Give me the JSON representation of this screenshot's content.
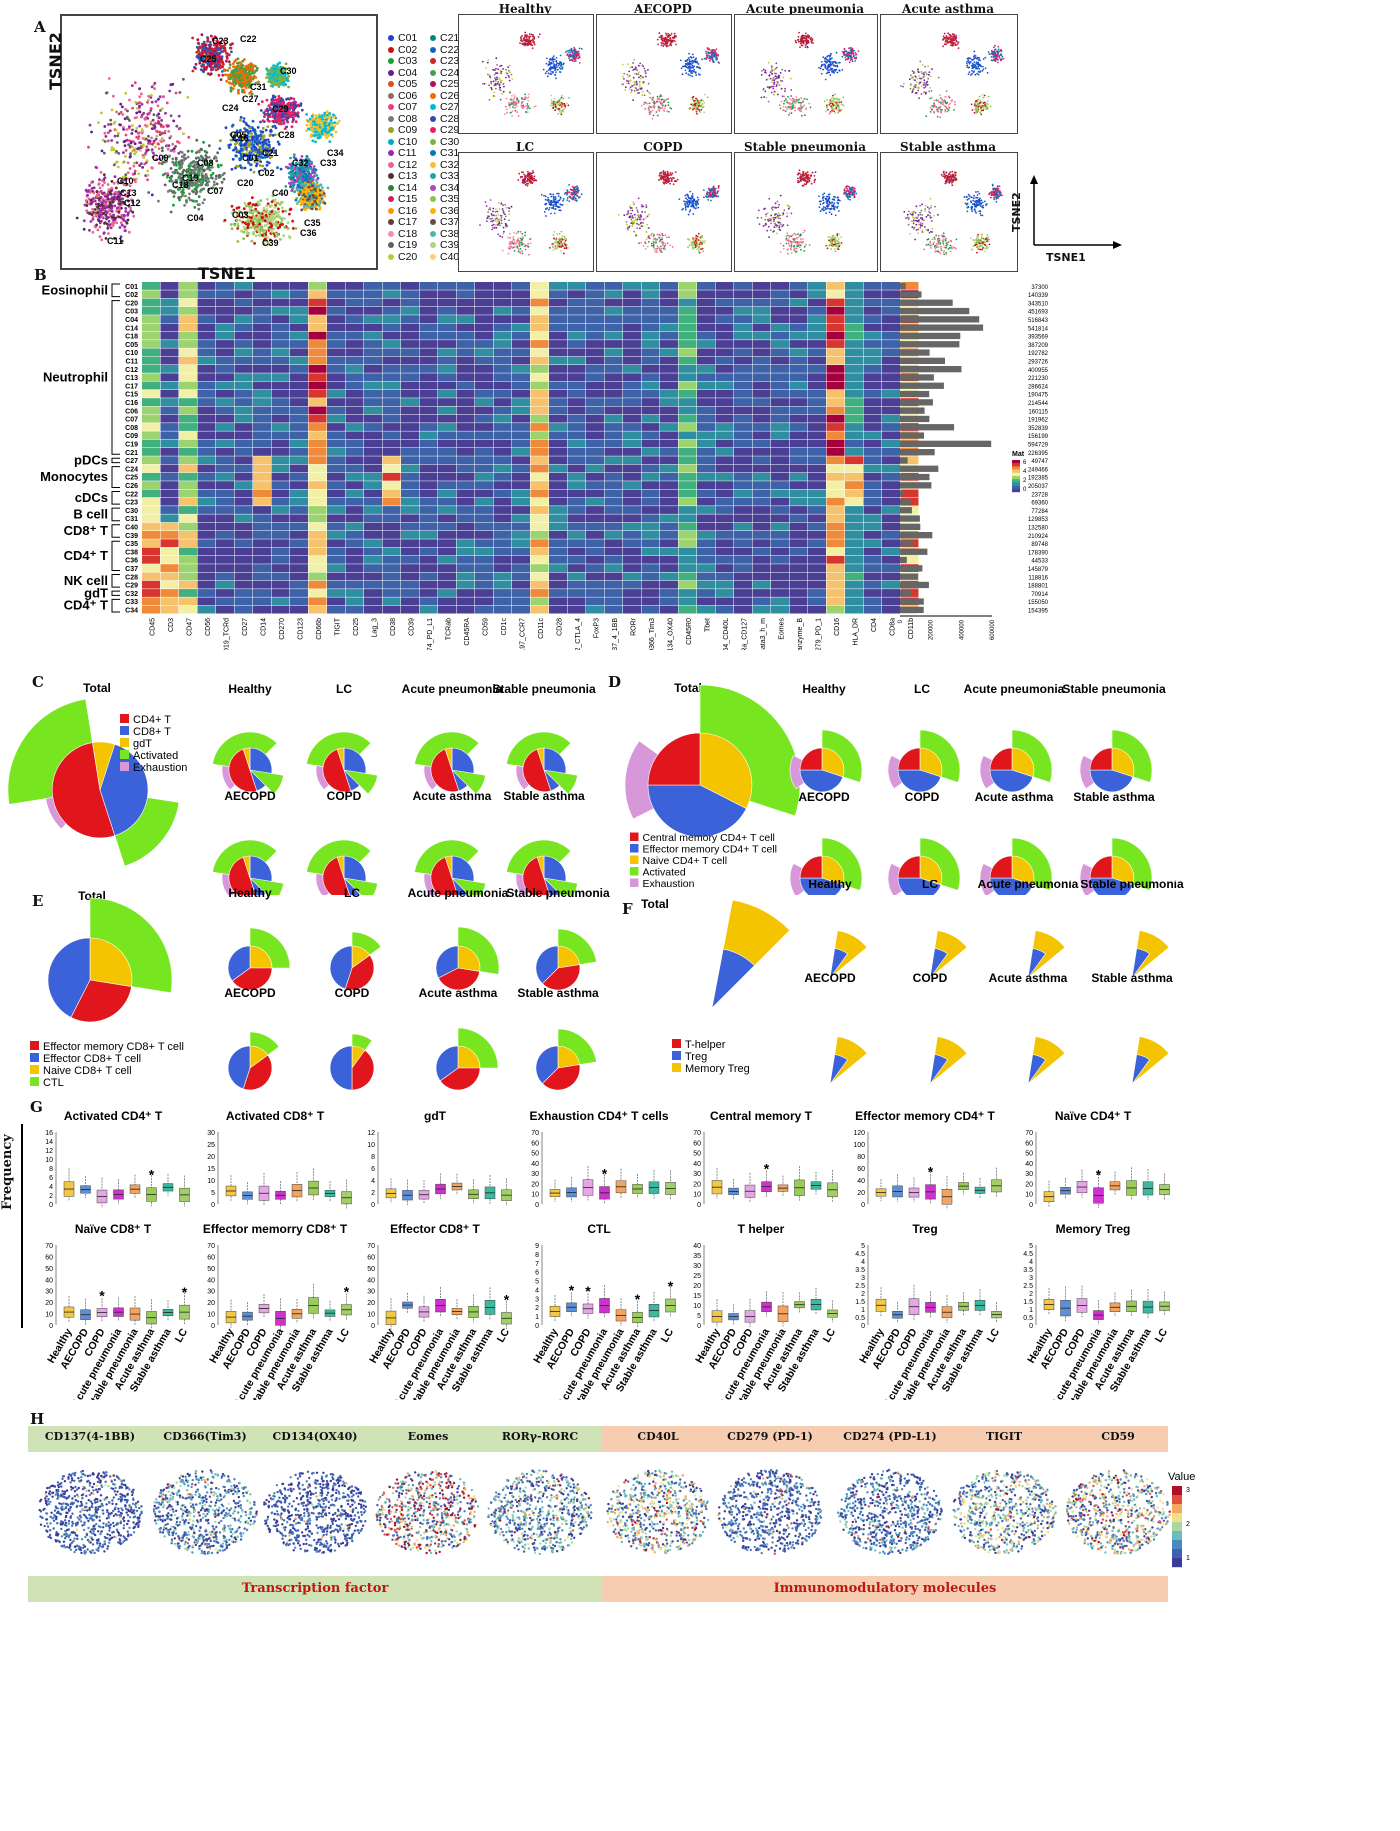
{
  "panels": {
    "A": "A",
    "B": "B",
    "C": "C",
    "D": "D",
    "E": "E",
    "F": "F",
    "G": "G",
    "H": "H"
  },
  "panelA": {
    "main_xlabel": "TSNE1",
    "main_ylabel": "TSNE2",
    "axis_x": "TSNE1",
    "axis_y": "TSNE2",
    "clusters": [
      "C01",
      "C02",
      "C03",
      "C04",
      "C05",
      "C06",
      "C07",
      "C08",
      "C09",
      "C10",
      "C11",
      "C12",
      "C13",
      "C14",
      "C15",
      "C16",
      "C17",
      "C18",
      "C19",
      "C20",
      "C21",
      "C22",
      "C23",
      "C24",
      "C25",
      "C26",
      "C27",
      "C28",
      "C29",
      "C30",
      "C31",
      "C32",
      "C33",
      "C34",
      "C35",
      "C36",
      "C37",
      "C38",
      "C39",
      "C40"
    ],
    "cluster_colors": [
      "#1f3fd6",
      "#cc1111",
      "#1a9e3a",
      "#6a1b9a",
      "#e64a19",
      "#8d6e63",
      "#ec407a",
      "#7b7b7b",
      "#9e9d24",
      "#00acc1",
      "#9c27b0",
      "#f06292",
      "#4e342e",
      "#2e7d32",
      "#d81b60",
      "#ff9800",
      "#5d4037",
      "#f48fb1",
      "#616161",
      "#c0ca33",
      "#00897b",
      "#1565c0",
      "#c62828",
      "#43a047",
      "#ad1457",
      "#ef6c00",
      "#00bcd4",
      "#3949ab",
      "#e91e63",
      "#7cb342",
      "#0277bd",
      "#fbc02d",
      "#26a69a",
      "#ab47bc",
      "#8bc34a",
      "#ffb300",
      "#6d4c41",
      "#4db6ac",
      "#aed581",
      "#ffcc80"
    ],
    "map_labels": [
      "C23",
      "C22",
      "C25",
      "C30",
      "C31",
      "C27",
      "C24",
      "C29",
      "C28",
      "C05",
      "C01",
      "C32",
      "C34",
      "C33",
      "C21",
      "C02",
      "C19",
      "C08",
      "C10",
      "C13",
      "C12",
      "C18",
      "C07",
      "C40",
      "C04",
      "C03",
      "C11",
      "C35",
      "C36",
      "C39",
      "C20",
      "C16",
      "C09"
    ],
    "small_maps": [
      "Healthy",
      "AECOPD",
      "Acute pneumonia",
      "Acute asthma",
      "LC",
      "COPD",
      "Stable pneumonia",
      "Stable asthma"
    ]
  },
  "panelB": {
    "markers": [
      "CD45",
      "CD3",
      "CD47",
      "CD56",
      "CD19_TCRd",
      "CD27",
      "CD14",
      "CD270",
      "CD123",
      "CD66b",
      "TIGIT",
      "CD25",
      "Lag_3",
      "CD38",
      "CD39",
      "CD274_PD_L1",
      "TCRab",
      "CD45RA",
      "CD59",
      "CD1c",
      "CD197_CCR7",
      "CD11c",
      "CD28",
      "CD152_CTLA_4",
      "FoxP3",
      "CD137_4_1BB",
      "RORr",
      "CD366_Tim3",
      "CD134_OX40",
      "CD45R0",
      "Tbet",
      "CD154_CD40L",
      "IL_7Ra_CD127",
      "Gata3_h_m",
      "Eomes",
      "hm_Granzyme_B",
      "CD279_PD_1",
      "CD16",
      "HLA_DR",
      "CD4",
      "CD8a",
      "CD11b"
    ],
    "rows": [
      "C01",
      "C02",
      "C20",
      "C03",
      "C04",
      "C14",
      "C18",
      "C05",
      "C10",
      "C11",
      "C12",
      "C13",
      "C17",
      "C15",
      "C16",
      "C06",
      "C07",
      "C08",
      "C09",
      "C19",
      "C21",
      "C27",
      "C24",
      "C25",
      "C26",
      "C22",
      "C23",
      "C30",
      "C31",
      "C40",
      "C39",
      "C35",
      "C38",
      "C36",
      "C37",
      "C28",
      "C29",
      "C32",
      "C33",
      "C34"
    ],
    "counts": [
      "37300",
      "140339",
      "343510",
      "451693",
      "516843",
      "541814",
      "393569",
      "387209",
      "192782",
      "293726",
      "400955",
      "221230",
      "286624",
      "190475",
      "214544",
      "160115",
      "191962",
      "352839",
      "156199",
      "594729",
      "226395",
      "49747",
      "249466",
      "192385",
      "205037",
      "23728",
      "69360",
      "77284",
      "129853",
      "132580",
      "210924",
      "89748",
      "178390",
      "44533",
      "145879",
      "118816",
      "188801",
      "70914",
      "155050",
      "154395"
    ],
    "count_values": [
      37300,
      140339,
      343510,
      451693,
      516843,
      541814,
      393569,
      387209,
      192782,
      293726,
      400955,
      221230,
      286624,
      190475,
      214544,
      160115,
      191962,
      352839,
      156199,
      594729,
      226395,
      49747,
      249466,
      192385,
      205037,
      23728,
      69360,
      77284,
      129853,
      132580,
      210924,
      89748,
      178390,
      44533,
      145879,
      118816,
      188801,
      70914,
      155050,
      154395
    ],
    "count_axis_ticks": [
      "0",
      "200000",
      "400000",
      "600000"
    ],
    "groups": [
      {
        "label": "Eosinophil",
        "first": 0,
        "last": 1
      },
      {
        "label": "Neutrophil",
        "first": 2,
        "last": 20
      },
      {
        "label": "pDCs",
        "first": 21,
        "last": 21
      },
      {
        "label": "Monocytes",
        "first": 22,
        "last": 24
      },
      {
        "label": "cDCs",
        "first": 25,
        "last": 26
      },
      {
        "label": "B cell",
        "first": 27,
        "last": 28
      },
      {
        "label": "CD8⁺ T",
        "first": 29,
        "last": 30
      },
      {
        "label": "CD4⁺ T",
        "first": 31,
        "last": 34
      },
      {
        "label": "NK cell",
        "first": 35,
        "last": 36
      },
      {
        "label": "gdT",
        "first": 37,
        "last": 37
      },
      {
        "label": "CD4⁺ T",
        "first": 38,
        "last": 39
      }
    ],
    "legend_title": "Mat",
    "legend_ticks": [
      "6",
      "4",
      "2",
      "0"
    ],
    "heat_colors": [
      "#4a3f94",
      "#3d62a8",
      "#2f8fa0",
      "#41b07f",
      "#9bd46f",
      "#f2f0a6",
      "#f6c26b",
      "#ef8a3a",
      "#d9352f",
      "#a3003d"
    ]
  },
  "panelC": {
    "total_title": "Total",
    "legend": [
      {
        "label": "CD4+ T",
        "color": "#e0161c"
      },
      {
        "label": "CD8+ T",
        "color": "#3c62d9"
      },
      {
        "label": "gdT",
        "color": "#f5c400"
      },
      {
        "label": "Activated",
        "color": "#77e620"
      },
      {
        "label": "Exhaustion",
        "color": "#d797d9"
      }
    ],
    "groups": [
      "Healthy",
      "LC",
      "Acute pneumonia",
      "Stable pneumonia",
      "AECOPD",
      "COPD",
      "Acute asthma",
      "Stable asthma"
    ]
  },
  "panelD": {
    "total_title": "Total",
    "legend": [
      {
        "label": "Central memory CD4+ T cell",
        "color": "#e0161c"
      },
      {
        "label": "Effector memory CD4+ T cell",
        "color": "#3c62d9"
      },
      {
        "label": "Naive CD4+ T cell",
        "color": "#f5c400"
      },
      {
        "label": "Activated",
        "color": "#77e620"
      },
      {
        "label": "Exhaustion",
        "color": "#d797d9"
      }
    ],
    "groups": [
      "Healthy",
      "LC",
      "Acute pneumonia",
      "Stable pneumonia",
      "AECOPD",
      "COPD",
      "Acute asthma",
      "Stable asthma"
    ]
  },
  "panelE": {
    "total_title": "Total",
    "legend": [
      {
        "label": "Effector memory CD8+ T cell",
        "color": "#e0161c"
      },
      {
        "label": "Effector CD8+ T cell",
        "color": "#3c62d9"
      },
      {
        "label": "Naive CD8+ T cell",
        "color": "#f5c400"
      },
      {
        "label": "CTL",
        "color": "#77e620"
      }
    ],
    "groups": [
      "Healthy",
      "LC",
      "Acute pneumonia",
      "Stable pneumonia",
      "AECOPD",
      "COPD",
      "Acute asthma",
      "Stable asthma"
    ]
  },
  "panelF": {
    "total_title": "Total",
    "legend": [
      {
        "label": "T-helper",
        "color": "#e0161c"
      },
      {
        "label": "Treg",
        "color": "#3c62d9"
      },
      {
        "label": "Memory Treg",
        "color": "#f5c400"
      }
    ],
    "groups": [
      "Healthy",
      "LC",
      "Acute pneumonia",
      "Stable pneumonia",
      "AECOPD",
      "COPD",
      "Acute asthma",
      "Stable asthma"
    ]
  },
  "panelG": {
    "ylabel": "Frequency",
    "groups": [
      "Healthy",
      "AECOPD",
      "COPD",
      "Acute pneumonia",
      "Stable pneumonia",
      "Acute asthma",
      "Stable asthma",
      "LC"
    ],
    "box_colors": [
      "#f2c744",
      "#5b8fd9",
      "#e6a6e6",
      "#cc33cc",
      "#f4a361",
      "#9acd56",
      "#3bb8a0",
      "#a3cf6a"
    ],
    "top_titles": [
      "Activated CD4⁺ T",
      "Activated CD8⁺ T",
      "gdT",
      "Exhaustion CD4⁺ T cells",
      "Central memory T",
      "Effector memory CD4⁺ T",
      "Naïve CD4⁺ T"
    ],
    "bottom_titles": [
      "Naïve CD8⁺ T",
      "Effector memorry CD8⁺ T",
      "Effector CD8⁺ T",
      "CTL",
      "T helper",
      "Treg",
      "Memory Treg"
    ],
    "top_ticks": [
      [
        "0",
        "2",
        "4",
        "6",
        "8",
        "10",
        "12",
        "14",
        "16"
      ],
      [
        "0",
        "5",
        "10",
        "15",
        "20",
        "25",
        "30"
      ],
      [
        "0",
        "2",
        "4",
        "6",
        "8",
        "10",
        "12"
      ],
      [
        "0",
        "10",
        "20",
        "30",
        "40",
        "50",
        "60",
        "70"
      ],
      [
        "0",
        "10",
        "20",
        "30",
        "40",
        "50",
        "60",
        "70"
      ],
      [
        "0",
        "20",
        "40",
        "60",
        "80",
        "100",
        "120"
      ],
      [
        "0",
        "10",
        "20",
        "30",
        "40",
        "50",
        "60",
        "70"
      ]
    ],
    "bottom_ticks": [
      [
        "0",
        "10",
        "20",
        "30",
        "40",
        "50",
        "60",
        "70"
      ],
      [
        "0",
        "10",
        "20",
        "30",
        "40",
        "50",
        "60",
        "70"
      ],
      [
        "0",
        "10",
        "20",
        "30",
        "40",
        "50",
        "60",
        "70"
      ],
      [
        "0",
        "1",
        "2",
        "3",
        "4",
        "5",
        "6",
        "7",
        "8",
        "9"
      ],
      [
        "0",
        "5",
        "10",
        "15",
        "20",
        "25",
        "30",
        "35",
        "40"
      ],
      [
        "0",
        "0.5",
        "1",
        "1.5",
        "2",
        "2.5",
        "3",
        "3.5",
        "4",
        "4.5",
        "5"
      ],
      [
        "0",
        "0.5",
        "1",
        "1.5",
        "2",
        "2.5",
        "3",
        "3.5",
        "4",
        "4.5",
        "5"
      ]
    ],
    "star": "*"
  },
  "panelH": {
    "markers_tf": [
      "CD137(4-1BB)",
      "CD366(Tim3)",
      "CD134(OX40)",
      "Eomes",
      "RORγ-RORC"
    ],
    "markers_im": [
      "CD40L",
      "CD279 (PD-1)",
      "CD274 (PD-L1)",
      "TIGIT",
      "CD59"
    ],
    "footer_tf": "Transcription factor",
    "footer_im": "Immunomodulatory molecules",
    "legend_title": "Value",
    "legend_ticks": [
      "3",
      "2",
      "1"
    ]
  }
}
